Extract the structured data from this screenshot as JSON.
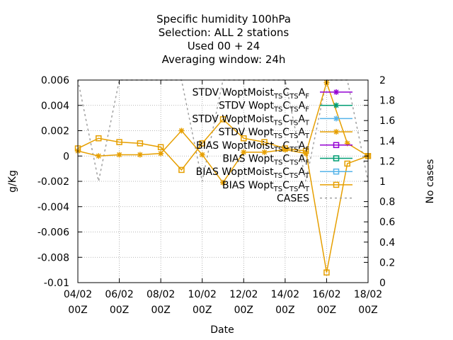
{
  "chart_data": {
    "type": "line",
    "title": [
      "Specific humidity 100hPa",
      "Selection: ALL      2 stations",
      "Used  00 + 24",
      "Averaging window: 24h"
    ],
    "xlabel": "Date",
    "ylabel": "g/Kg",
    "y2label": "No cases",
    "x_ticks": [
      {
        "d": 4,
        "l1": "04/02",
        "l2": "00Z"
      },
      {
        "d": 6,
        "l1": "06/02",
        "l2": "00Z"
      },
      {
        "d": 8,
        "l1": "08/02",
        "l2": "00Z"
      },
      {
        "d": 10,
        "l1": "10/02",
        "l2": "00Z"
      },
      {
        "d": 12,
        "l1": "12/02",
        "l2": "00Z"
      },
      {
        "d": 14,
        "l1": "14/02",
        "l2": "00Z"
      },
      {
        "d": 16,
        "l1": "16/02",
        "l2": "00Z"
      },
      {
        "d": 18,
        "l1": "18/02",
        "l2": "00Z"
      }
    ],
    "xlim": [
      4,
      18
    ],
    "ylim": [
      -0.01,
      0.006
    ],
    "y_ticks": [
      "0.006",
      "0.004",
      "0.002",
      "0",
      "-0.002",
      "-0.004",
      "-0.006",
      "-0.008",
      "-0.01"
    ],
    "y2lim": [
      0,
      2
    ],
    "y2_ticks": [
      "2",
      "1.8",
      "1.6",
      "1.4",
      "1.2",
      "1",
      "0.8",
      "0.6",
      "0.4",
      "0.2",
      "0"
    ],
    "grid": true,
    "legend_position": "top-right",
    "legend": [
      {
        "pre": "STDV WoptMoist",
        "sub1": "TS",
        "mid": "C",
        "sub2": "TS",
        "end": "A",
        "sub3": "F",
        "color": "#9400d3",
        "marker": "star"
      },
      {
        "pre": "STDV Wopt",
        "sub1": "TS",
        "mid": "C",
        "sub2": "TS",
        "end": "A",
        "sub3": "F",
        "color": "#009e73",
        "marker": "star"
      },
      {
        "pre": "STDV WoptMoist",
        "sub1": "TS",
        "mid": "C",
        "sub2": "TS",
        "end": "A",
        "sub3": "T",
        "color": "#56b4e9",
        "marker": "star"
      },
      {
        "pre": "STDV Wopt",
        "sub1": "TS",
        "mid": "C",
        "sub2": "TS",
        "end": "A",
        "sub3": "T",
        "color": "#e69f00",
        "marker": "star"
      },
      {
        "pre": "BIAS WoptMoist",
        "sub1": "TS",
        "mid": "C",
        "sub2": "TS",
        "end": "A",
        "sub3": "F",
        "color": "#9400d3",
        "marker": "square"
      },
      {
        "pre": "BIAS Wopt",
        "sub1": "TS",
        "mid": "C",
        "sub2": "TS",
        "end": "A",
        "sub3": "F",
        "color": "#009e73",
        "marker": "square"
      },
      {
        "pre": "BIAS WoptMoist",
        "sub1": "TS",
        "mid": "C",
        "sub2": "TS",
        "end": "A",
        "sub3": "T",
        "color": "#56b4e9",
        "marker": "square"
      },
      {
        "pre": "BIAS Wopt",
        "sub1": "TS",
        "mid": "C",
        "sub2": "TS",
        "end": "A",
        "sub3": "T",
        "color": "#e69f00",
        "marker": "square"
      },
      {
        "pre": "CASES",
        "color": "#a0a0a0",
        "marker": "dash"
      }
    ],
    "series_stdv": {
      "x": [
        4,
        5,
        6,
        7,
        8,
        9,
        10,
        11,
        12,
        13,
        14,
        15,
        16,
        17,
        18
      ],
      "y": [
        0.0004,
        0.0,
        0.0001,
        0.0001,
        0.0002,
        0.002,
        0.0001,
        -0.0021,
        0.0003,
        0.0003,
        0.0005,
        0.0002,
        0.0058,
        0.001,
        0.0
      ],
      "color": "#e69f00"
    },
    "series_bias": {
      "x": [
        4,
        5,
        6,
        7,
        8,
        9,
        10,
        11,
        12,
        13,
        14,
        15,
        16,
        17,
        18
      ],
      "y": [
        0.0006,
        0.0014,
        0.0011,
        0.001,
        0.0007,
        -0.0011,
        0.001,
        0.0029,
        0.0014,
        0.0011,
        0.0006,
        0.0004,
        -0.0092,
        -0.0006,
        0.0
      ],
      "color": "#e69f00"
    },
    "series_cases": {
      "x": [
        4,
        5,
        6,
        7,
        8,
        9,
        10,
        11,
        12,
        13,
        14,
        15,
        16,
        17,
        18
      ],
      "y2": [
        2,
        1,
        2,
        2,
        2,
        2,
        1,
        2,
        2,
        2,
        2,
        1,
        2,
        2,
        1
      ],
      "color": "#a0a0a0"
    }
  }
}
